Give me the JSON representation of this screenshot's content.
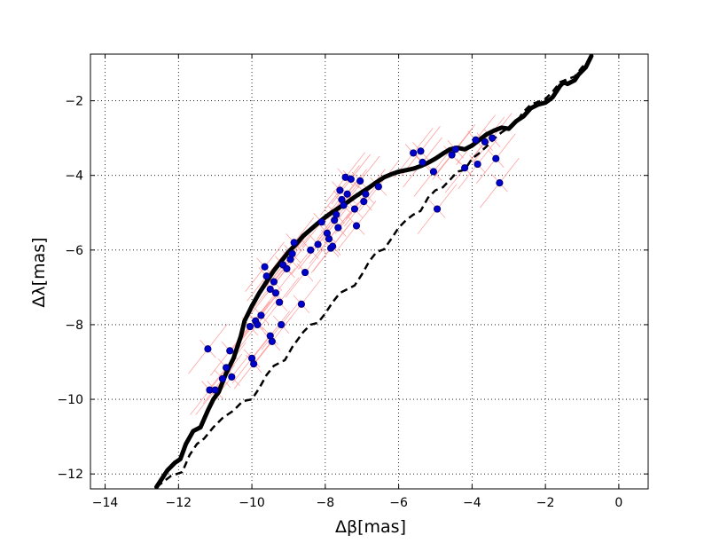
{
  "chart_data": {
    "type": "scatter",
    "xlabel": "Δβ[mas]",
    "ylabel": "Δλ[mas]",
    "xlim": [
      -14.4,
      0.8
    ],
    "ylim": [
      -12.4,
      -0.75
    ],
    "xticks": [
      -14,
      -12,
      -10,
      -8,
      -6,
      -4,
      -2,
      0
    ],
    "xtick_labels": [
      "−14",
      "−12",
      "−10",
      "−8",
      "−6",
      "−4",
      "−2",
      "0"
    ],
    "yticks": [
      -12,
      -10,
      -8,
      -6,
      -4,
      -2
    ],
    "ytick_labels": [
      "−12",
      "−10",
      "−8",
      "−6",
      "−4",
      "−2"
    ],
    "grid": true,
    "colors": {
      "points": "#0000cc",
      "error_bars": "#ff9999",
      "curves": "#000000"
    },
    "series": [
      {
        "style": "solid",
        "x": [
          -12.6,
          -12.3,
          -12.1,
          -11.95,
          -11.8,
          -11.6,
          -11.4,
          -11.2,
          -11.05,
          -10.9,
          -10.7,
          -10.5,
          -10.3,
          -10.2,
          -10.0,
          -9.8,
          -9.6,
          -9.4,
          -9.2,
          -9.0,
          -8.8,
          -8.6,
          -8.4,
          -8.2,
          -8.0,
          -7.8,
          -7.6,
          -7.4,
          -7.2,
          -7.0,
          -6.8,
          -6.6,
          -6.4,
          -6.2,
          -6.0,
          -5.8,
          -5.6,
          -5.4,
          -5.2,
          -5.0,
          -4.8,
          -4.6,
          -4.4,
          -4.2,
          -4.0,
          -3.8,
          -3.6,
          -3.4,
          -3.2,
          -3.0,
          -2.8,
          -2.6,
          -2.4,
          -2.2,
          -2.0,
          -1.9,
          -1.8,
          -1.6,
          -1.5,
          -1.4,
          -1.2,
          -1.1,
          -0.9,
          -0.75
        ],
        "y": [
          -12.35,
          -11.9,
          -11.7,
          -11.6,
          -11.2,
          -10.85,
          -10.75,
          -10.3,
          -10.0,
          -9.8,
          -9.3,
          -8.9,
          -8.3,
          -7.9,
          -7.5,
          -7.15,
          -6.85,
          -6.55,
          -6.3,
          -6.05,
          -5.85,
          -5.62,
          -5.45,
          -5.28,
          -5.12,
          -4.98,
          -4.85,
          -4.72,
          -4.58,
          -4.45,
          -4.32,
          -4.18,
          -4.05,
          -3.97,
          -3.9,
          -3.86,
          -3.82,
          -3.75,
          -3.66,
          -3.55,
          -3.42,
          -3.3,
          -3.26,
          -3.3,
          -3.2,
          -3.05,
          -2.9,
          -2.8,
          -2.72,
          -2.75,
          -2.55,
          -2.42,
          -2.2,
          -2.1,
          -2.05,
          -1.98,
          -1.9,
          -1.6,
          -1.5,
          -1.55,
          -1.45,
          -1.3,
          -1.1,
          -0.8
        ]
      },
      {
        "style": "dashed",
        "x": [
          -12.6,
          -12.2,
          -11.9,
          -11.7,
          -11.5,
          -11.3,
          -11.05,
          -10.8,
          -10.5,
          -10.25,
          -10.0,
          -9.8,
          -9.6,
          -9.4,
          -9.1,
          -8.9,
          -8.6,
          -8.4,
          -8.2,
          -8.0,
          -7.8,
          -7.6,
          -7.4,
          -7.2,
          -7.0,
          -6.8,
          -6.6,
          -6.4,
          -6.2,
          -6.0,
          -5.8,
          -5.6,
          -5.4,
          -5.2,
          -5.0,
          -4.8,
          -4.6,
          -4.4,
          -4.2,
          -4.0,
          -3.8,
          -3.6,
          -3.4,
          -3.2,
          -3.0,
          -2.8,
          -2.6,
          -2.4,
          -2.2,
          -2.0,
          -1.8,
          -1.6,
          -1.4,
          -1.2,
          -1.0,
          -0.75
        ],
        "y": [
          -12.35,
          -12.05,
          -11.95,
          -11.5,
          -11.2,
          -11.05,
          -10.75,
          -10.5,
          -10.3,
          -10.05,
          -10.0,
          -9.7,
          -9.35,
          -9.1,
          -8.95,
          -8.6,
          -8.2,
          -8.0,
          -7.95,
          -7.7,
          -7.4,
          -7.15,
          -7.05,
          -6.95,
          -6.65,
          -6.3,
          -6.05,
          -5.98,
          -5.7,
          -5.4,
          -5.2,
          -5.05,
          -4.95,
          -4.6,
          -4.4,
          -4.32,
          -4.12,
          -3.9,
          -3.85,
          -3.55,
          -3.4,
          -3.22,
          -3.02,
          -2.85,
          -2.72,
          -2.58,
          -2.3,
          -2.1,
          -2.03,
          -1.95,
          -1.75,
          -1.5,
          -1.42,
          -1.35,
          -1.1,
          -0.85
        ]
      }
    ],
    "points": [
      {
        "x": -11.2,
        "y": -8.65
      },
      {
        "x": -11.15,
        "y": -9.75
      },
      {
        "x": -11.0,
        "y": -9.75
      },
      {
        "x": -10.8,
        "y": -9.45
      },
      {
        "x": -10.7,
        "y": -9.15
      },
      {
        "x": -10.6,
        "y": -8.7
      },
      {
        "x": -10.55,
        "y": -9.4
      },
      {
        "x": -10.05,
        "y": -8.05
      },
      {
        "x": -10.0,
        "y": -8.9
      },
      {
        "x": -9.95,
        "y": -9.05
      },
      {
        "x": -9.9,
        "y": -7.9
      },
      {
        "x": -9.85,
        "y": -8.0
      },
      {
        "x": -9.75,
        "y": -7.75
      },
      {
        "x": -9.65,
        "y": -6.45
      },
      {
        "x": -9.6,
        "y": -6.7
      },
      {
        "x": -9.5,
        "y": -8.3
      },
      {
        "x": -9.45,
        "y": -8.45
      },
      {
        "x": -9.5,
        "y": -7.05
      },
      {
        "x": -9.4,
        "y": -6.85
      },
      {
        "x": -9.35,
        "y": -7.15
      },
      {
        "x": -9.25,
        "y": -7.4
      },
      {
        "x": -9.2,
        "y": -8.0
      },
      {
        "x": -9.15,
        "y": -6.4
      },
      {
        "x": -9.05,
        "y": -6.5
      },
      {
        "x": -8.95,
        "y": -6.25
      },
      {
        "x": -8.9,
        "y": -6.1
      },
      {
        "x": -8.85,
        "y": -5.8
      },
      {
        "x": -8.65,
        "y": -7.45
      },
      {
        "x": -8.55,
        "y": -6.6
      },
      {
        "x": -8.4,
        "y": -6.0
      },
      {
        "x": -8.2,
        "y": -5.85
      },
      {
        "x": -8.1,
        "y": -5.25
      },
      {
        "x": -7.95,
        "y": -5.55
      },
      {
        "x": -7.9,
        "y": -5.7
      },
      {
        "x": -7.85,
        "y": -5.95
      },
      {
        "x": -7.8,
        "y": -5.9
      },
      {
        "x": -7.75,
        "y": -5.2
      },
      {
        "x": -7.7,
        "y": -5.05
      },
      {
        "x": -7.65,
        "y": -5.4
      },
      {
        "x": -7.6,
        "y": -4.4
      },
      {
        "x": -7.55,
        "y": -4.65
      },
      {
        "x": -7.5,
        "y": -4.8
      },
      {
        "x": -7.45,
        "y": -4.05
      },
      {
        "x": -7.4,
        "y": -4.5
      },
      {
        "x": -7.3,
        "y": -4.1
      },
      {
        "x": -7.2,
        "y": -4.9
      },
      {
        "x": -7.15,
        "y": -5.35
      },
      {
        "x": -7.05,
        "y": -4.15
      },
      {
        "x": -6.95,
        "y": -4.7
      },
      {
        "x": -6.9,
        "y": -4.5
      },
      {
        "x": -6.55,
        "y": -4.3
      },
      {
        "x": -5.6,
        "y": -3.4
      },
      {
        "x": -5.4,
        "y": -3.35
      },
      {
        "x": -5.35,
        "y": -3.65
      },
      {
        "x": -5.05,
        "y": -3.9
      },
      {
        "x": -4.95,
        "y": -4.9
      },
      {
        "x": -4.55,
        "y": -3.45
      },
      {
        "x": -4.45,
        "y": -3.3
      },
      {
        "x": -4.2,
        "y": -3.8
      },
      {
        "x": -3.9,
        "y": -3.05
      },
      {
        "x": -3.85,
        "y": -3.7
      },
      {
        "x": -3.65,
        "y": -3.1
      },
      {
        "x": -3.45,
        "y": -3.0
      },
      {
        "x": -3.35,
        "y": -3.55
      },
      {
        "x": -3.25,
        "y": -4.2
      }
    ]
  }
}
